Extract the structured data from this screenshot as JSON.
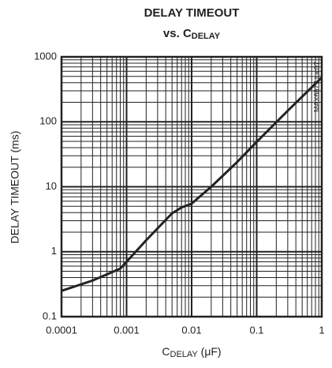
{
  "chart_data": {
    "type": "line",
    "title": "DELAY TIMEOUT",
    "subtitle": [
      "vs. C",
      "DELAY"
    ],
    "xlabel": [
      "C",
      "DELAY",
      " (μF)"
    ],
    "ylabel": "DELAY TIMEOUT (ms)",
    "annotation": "MAX6877 toc07",
    "x": [
      0.0001,
      0.0003,
      0.0008,
      0.001,
      0.002,
      0.005,
      0.007,
      0.01,
      0.02,
      0.05,
      0.1,
      0.3,
      1
    ],
    "series": [
      {
        "name": "DELAY TIMEOUT",
        "color": "#222222",
        "values": [
          0.25,
          0.36,
          0.55,
          0.7,
          1.5,
          3.9,
          4.8,
          5.5,
          10,
          24,
          49,
          148,
          480
        ]
      }
    ],
    "xlim": [
      0.0001,
      1
    ],
    "ylim": [
      0.1,
      1000
    ],
    "xticks": [
      0.0001,
      0.001,
      0.01,
      0.1,
      1
    ],
    "yticks": [
      0.1,
      1,
      10,
      100,
      1000
    ],
    "xscale": "log",
    "yscale": "log",
    "grid": true
  }
}
